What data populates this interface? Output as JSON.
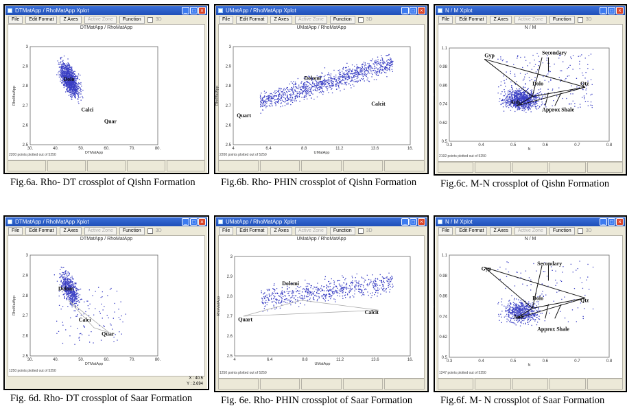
{
  "menu": {
    "file": "File",
    "edit_format": "Edit Format",
    "z_axes": "Z Axes",
    "active_zone": "Active Zone",
    "function": "Function",
    "three_d": "3D"
  },
  "panels": [
    {
      "id": "a",
      "window_title": "DTMatApp / RhoMatApp Xplot",
      "chart_title": "DTMatApp / RhoMatApp",
      "xlabel": "DTMatApp",
      "ylabel": "RhoMatApp",
      "points_text": "2200 points plotted out of 5250",
      "caption": "Fig.6a. Rho- DT crossplot of Qishn Formation",
      "xticks": [
        "30.",
        "40.",
        "50.",
        "60.",
        "70.",
        "80."
      ],
      "yticks": [
        "3",
        "2.9",
        "2.8",
        "2.7",
        "2.6",
        "2.5"
      ],
      "labels": [
        "Dolo",
        "Calci",
        "Quar"
      ]
    },
    {
      "id": "b",
      "window_title": "UMatApp / RhoMatApp Xplot",
      "chart_title": "UMatApp / RhoMatApp",
      "xlabel": "UMatApp",
      "ylabel": "RhoMatApp",
      "points_text": "2200 points plotted out of 5250",
      "caption": "Fig.6b. Rho- PHIN crossplot of Qishn Formation",
      "xticks": [
        "4",
        "6.4",
        "8.8",
        "11.2",
        "13.6",
        "16."
      ],
      "yticks": [
        "3",
        "2.9",
        "2.8",
        "2.7",
        "2.6",
        "2.5"
      ],
      "labels": [
        "Dolomi",
        "Quart",
        "Calcit"
      ]
    },
    {
      "id": "c",
      "window_title": "N / M Xplot",
      "chart_title": "N / M",
      "xlabel": "N",
      "ylabel": "M",
      "points_text": "2192 points plotted out of 5250",
      "caption": "Fig.6c. M-N crossplot of Qishn Formation",
      "xticks": [
        "0.3",
        "0.4",
        "0.5",
        "0.6",
        "0.7",
        "0.8"
      ],
      "yticks": [
        "1.1",
        "0.98",
        "0.86",
        "0.74",
        "0.62",
        "0.5"
      ],
      "labels": [
        "Gyp",
        "Secondary",
        "Dolo",
        "Qtz",
        "Anh",
        "Approx Shale"
      ]
    },
    {
      "id": "d",
      "window_title": "DTMatApp / RhoMatApp Xplot",
      "chart_title": "DTMatApp / RhoMatApp",
      "xlabel": "DTMatApp",
      "ylabel": "RhoMatApp",
      "points_text": "1250 points plotted out of 5250",
      "caption": "Fig. 6d. Rho- DT crossplot of Saar Formation",
      "coords": [
        "X : 40.5",
        "Y : 2.694"
      ],
      "xticks": [
        "30.",
        "40.",
        "50.",
        "60.",
        "70.",
        "80."
      ],
      "yticks": [
        "3",
        "2.9",
        "2.8",
        "2.7",
        "2.6",
        "2.5"
      ],
      "labels": [
        "Dolom",
        "Calci",
        "Quar"
      ]
    },
    {
      "id": "e",
      "window_title": "UMatApp / RhoMatApp Xplot",
      "chart_title": "UMatApp / RhoMatApp",
      "xlabel": "UMatApp",
      "ylabel": "RhoMatApp",
      "points_text": "1250 points plotted out of 5250",
      "caption": "Fig. 6e. Rho- PHIN crossplot of Saar Formation",
      "xticks": [
        "4",
        "6.4",
        "8.8",
        "11.2",
        "13.6",
        "16."
      ],
      "yticks": [
        "3",
        "2.9",
        "2.8",
        "2.7",
        "2.6",
        "2.5"
      ],
      "labels": [
        "Dolomi",
        "Quart",
        "Calcit"
      ]
    },
    {
      "id": "f",
      "window_title": "N / M Xplot",
      "chart_title": "N / M",
      "xlabel": "N",
      "ylabel": "M",
      "points_text": "1247 points plotted out of 5250",
      "caption": "Fig.6f. M- N crossplot of Saar Formation",
      "xticks": [
        "0.3",
        "0.4",
        "0.5",
        "0.6",
        "0.7",
        "0.8"
      ],
      "yticks": [
        "1.1",
        "0.98",
        "0.86",
        "0.74",
        "0.62",
        "0.5"
      ],
      "labels": [
        "Gyp",
        "Secondary",
        "Dolo",
        "Qtz",
        "Anh",
        "Approx Shale"
      ]
    }
  ],
  "colors": {
    "points": "#3a3fc4",
    "title_bar": "#2a5fd0",
    "frame": "#000000"
  }
}
